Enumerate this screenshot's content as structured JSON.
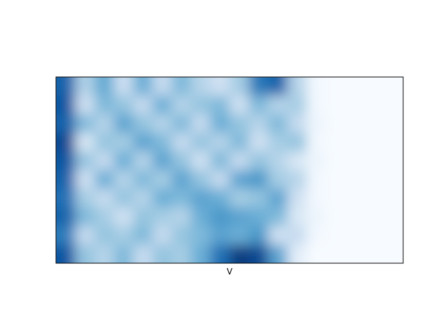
{
  "chart_data": {
    "type": "heatmap",
    "title": "",
    "xlabel": "V",
    "ylabel": "",
    "grid": false,
    "colorbar": false,
    "interpolation": "smooth",
    "colormap": [
      "#f7fbff",
      "#deebf7",
      "#c6dbef",
      "#9ecae1",
      "#6baed6",
      "#4292c6",
      "#2171b5",
      "#08519c",
      "#08306b"
    ],
    "value_range": [
      0,
      1
    ],
    "rows": 10,
    "cols": 18,
    "values": [
      [
        0.8,
        0.32,
        0.52,
        0.22,
        0.5,
        0.25,
        0.45,
        0.3,
        0.2,
        0.35,
        0.72,
        0.8,
        0.3,
        0.02,
        0.0,
        0.0,
        0.0,
        0.0
      ],
      [
        0.85,
        0.2,
        0.45,
        0.4,
        0.25,
        0.5,
        0.3,
        0.4,
        0.45,
        0.2,
        0.45,
        0.3,
        0.35,
        0.02,
        0.0,
        0.0,
        0.0,
        0.0
      ],
      [
        0.8,
        0.45,
        0.3,
        0.55,
        0.4,
        0.3,
        0.45,
        0.25,
        0.5,
        0.4,
        0.3,
        0.45,
        0.25,
        0.05,
        0.0,
        0.0,
        0.0,
        0.0
      ],
      [
        0.9,
        0.15,
        0.4,
        0.35,
        0.55,
        0.45,
        0.25,
        0.4,
        0.3,
        0.45,
        0.2,
        0.35,
        0.4,
        0.02,
        0.0,
        0.0,
        0.0,
        0.0
      ],
      [
        0.85,
        0.4,
        0.25,
        0.5,
        0.3,
        0.55,
        0.4,
        0.2,
        0.45,
        0.25,
        0.4,
        0.3,
        0.15,
        0.05,
        0.0,
        0.0,
        0.0,
        0.0
      ],
      [
        0.8,
        0.2,
        0.5,
        0.3,
        0.45,
        0.35,
        0.55,
        0.4,
        0.25,
        0.55,
        0.6,
        0.35,
        0.3,
        0.02,
        0.0,
        0.0,
        0.0,
        0.0
      ],
      [
        0.75,
        0.35,
        0.25,
        0.4,
        0.3,
        0.5,
        0.45,
        0.55,
        0.5,
        0.35,
        0.4,
        0.55,
        0.2,
        0.02,
        0.0,
        0.0,
        0.0,
        0.0
      ],
      [
        0.8,
        0.45,
        0.35,
        0.2,
        0.4,
        0.35,
        0.3,
        0.5,
        0.6,
        0.55,
        0.5,
        0.45,
        0.15,
        0.05,
        0.0,
        0.0,
        0.0,
        0.0
      ],
      [
        0.7,
        0.25,
        0.4,
        0.35,
        0.45,
        0.25,
        0.4,
        0.45,
        0.55,
        0.5,
        0.6,
        0.2,
        0.25,
        0.02,
        0.0,
        0.0,
        0.0,
        0.0
      ],
      [
        0.85,
        0.4,
        0.3,
        0.45,
        0.25,
        0.4,
        0.35,
        0.5,
        0.75,
        0.95,
        0.9,
        0.55,
        0.1,
        0.0,
        0.0,
        0.0,
        0.0,
        0.0
      ]
    ]
  }
}
